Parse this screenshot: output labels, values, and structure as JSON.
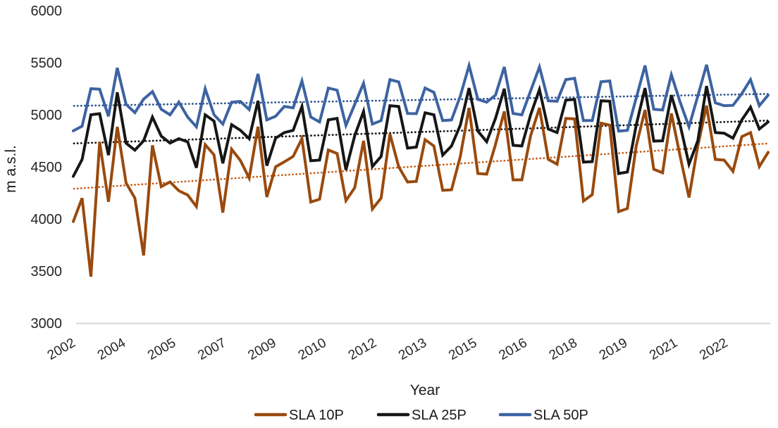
{
  "chart_data": {
    "type": "line",
    "xlabel": "Year",
    "ylabel": "m a.s.l.",
    "ylim": [
      3000,
      6000
    ],
    "y_ticks": [
      3000,
      3500,
      4000,
      4500,
      5000,
      5500,
      6000
    ],
    "x_tick_labels": [
      "2002",
      "2004",
      "2005",
      "2007",
      "2009",
      "2010",
      "2012",
      "2013",
      "2015",
      "2016",
      "2018",
      "2019",
      "2021",
      "2022"
    ],
    "grid": "horizontal baseline at 3000 only",
    "legend_position": "bottom-center",
    "series": [
      {
        "name": "SLA 10P",
        "color": "#9A4A0E",
        "values": [
          3975,
          4199,
          3446,
          4740,
          4165,
          4884,
          4345,
          4200,
          3649,
          4707,
          4310,
          4355,
          4270,
          4230,
          4118,
          4713,
          4615,
          4061,
          4669,
          4561,
          4392,
          4885,
          4210,
          4500,
          4548,
          4600,
          4770,
          4162,
          4189,
          4662,
          4628,
          4176,
          4300,
          4750,
          4095,
          4200,
          4815,
          4500,
          4355,
          4360,
          4761,
          4700,
          4274,
          4280,
          4600,
          5066,
          4436,
          4430,
          4714,
          5032,
          4375,
          4375,
          4800,
          5066,
          4572,
          4525,
          4965,
          4960,
          4172,
          4233,
          4918,
          4900,
          4070,
          4100,
          4700,
          5046,
          4477,
          4443,
          5012,
          4600,
          4206,
          4700,
          5087,
          4571,
          4565,
          4457,
          4790,
          4829,
          4503,
          4639
        ]
      },
      {
        "name": "SLA 25P",
        "color": "#161616",
        "values": [
          4409,
          4570,
          5000,
          5010,
          4612,
          5215,
          4727,
          4660,
          4750,
          4978,
          4795,
          4728,
          4770,
          4740,
          4491,
          4999,
          4939,
          4534,
          4905,
          4851,
          4770,
          5134,
          4511,
          4775,
          4829,
          4850,
          5080,
          4558,
          4565,
          4951,
          4965,
          4470,
          4800,
          5032,
          4503,
          4600,
          5087,
          5080,
          4680,
          4690,
          5019,
          5000,
          4612,
          4700,
          4900,
          5256,
          4843,
          4741,
          4965,
          5249,
          4707,
          4700,
          5000,
          5242,
          4863,
          4829,
          5141,
          5147,
          4545,
          4550,
          5134,
          5130,
          4436,
          4450,
          4900,
          5256,
          4747,
          4750,
          5188,
          4900,
          4525,
          4750,
          5276,
          4829,
          4823,
          4775,
          4950,
          5073,
          4863,
          4931
        ]
      },
      {
        "name": "SLA 50P",
        "color": "#3D63A2",
        "values": [
          4845,
          4890,
          5250,
          5245,
          4985,
          5450,
          5100,
          5020,
          5150,
          5222,
          5053,
          4999,
          5121,
          4978,
          4884,
          5249,
          5000,
          4911,
          5121,
          5128,
          5050,
          5392,
          4951,
          4985,
          5080,
          5066,
          5324,
          4978,
          4931,
          5256,
          5236,
          4897,
          5100,
          5303,
          4910,
          4944,
          5337,
          5315,
          5012,
          5010,
          5256,
          5215,
          4944,
          4950,
          5180,
          5472,
          5147,
          5120,
          5188,
          5459,
          5012,
          4999,
          5230,
          5459,
          5134,
          5130,
          5337,
          5350,
          4944,
          4944,
          5317,
          5324,
          4843,
          4850,
          5160,
          5472,
          5053,
          5046,
          5384,
          5120,
          4884,
          5180,
          5480,
          5114,
          5087,
          5090,
          5202,
          5337,
          5087,
          5188
        ]
      }
    ],
    "trendlines": [
      {
        "series": "SLA 10P",
        "style": "dotted",
        "color": "#C55A11",
        "start": 4290,
        "end": 4725
      },
      {
        "series": "SLA 25P",
        "style": "dotted",
        "color": "#141414",
        "start": 4725,
        "end": 4945
      },
      {
        "series": "SLA 50P",
        "style": "dotted",
        "color": "#2E538F",
        "start": 5085,
        "end": 5200
      }
    ]
  },
  "axes": {
    "x_title": "Year",
    "y_title": "m a.s.l."
  },
  "legend": {
    "items": [
      {
        "label": "SLA 10P",
        "color": "#9A4A0E"
      },
      {
        "label": "SLA 25P",
        "color": "#161616"
      },
      {
        "label": "SLA 50P",
        "color": "#3D63A2"
      }
    ]
  },
  "colors": {
    "baseline_grid": "#D6D6D6",
    "tick_text": "#262626"
  }
}
